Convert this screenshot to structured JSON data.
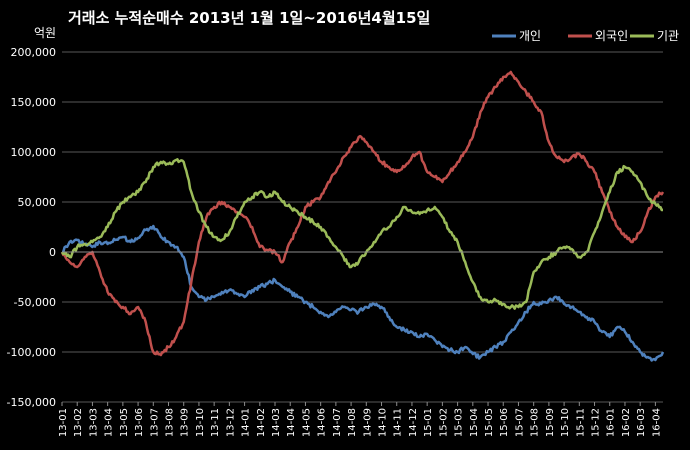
{
  "chart_data": {
    "type": "line",
    "title": "거래소  누적순매수 2013년 1월 1일~2016년4월15일",
    "unit_label": "억원",
    "ylim": [
      -150000,
      200000
    ],
    "y_ticks": [
      {
        "value": 200000,
        "label": "200,000"
      },
      {
        "value": 150000,
        "label": "150,000"
      },
      {
        "value": 100000,
        "label": "100,000"
      },
      {
        "value": 50000,
        "label": "50,000"
      },
      {
        "value": 0,
        "label": "0"
      },
      {
        "value": -50000,
        "label": "-50,000"
      },
      {
        "value": -100000,
        "label": "-100,000"
      },
      {
        "value": -150000,
        "label": "-150,000"
      }
    ],
    "categories": [
      "13-01",
      "13-02",
      "13-03",
      "13-04",
      "13-05",
      "13-06",
      "13-07",
      "13-08",
      "13-09",
      "13-10",
      "13-11",
      "13-12",
      "14-01",
      "14-02",
      "14-03",
      "14-04",
      "14-05",
      "14-06",
      "14-07",
      "14-08",
      "14-09",
      "14-10",
      "14-11",
      "14-12",
      "15-01",
      "15-02",
      "15-03",
      "15-04",
      "15-05",
      "15-06",
      "15-07",
      "15-08",
      "15-09",
      "15-10",
      "15-11",
      "15-12",
      "16-01",
      "16-02",
      "16-03",
      "16-04"
    ],
    "x_end": 39.5,
    "grid": true,
    "legend": "top-right",
    "series": [
      {
        "name": "개인",
        "color": "#4F81BD",
        "points": [
          [
            0,
            0
          ],
          [
            0.5,
            10000
          ],
          [
            1,
            12000
          ],
          [
            1.5,
            8000
          ],
          [
            2,
            5000
          ],
          [
            2.5,
            10000
          ],
          [
            3,
            8000
          ],
          [
            3.5,
            12000
          ],
          [
            4,
            15000
          ],
          [
            4.5,
            10000
          ],
          [
            5,
            14000
          ],
          [
            5.5,
            22000
          ],
          [
            6,
            26000
          ],
          [
            6.5,
            15000
          ],
          [
            7,
            10000
          ],
          [
            7.5,
            5000
          ],
          [
            8,
            -5000
          ],
          [
            8.5,
            -35000
          ],
          [
            9,
            -45000
          ],
          [
            9.5,
            -48000
          ],
          [
            10,
            -45000
          ],
          [
            10.5,
            -40000
          ],
          [
            11,
            -38000
          ],
          [
            11.5,
            -42000
          ],
          [
            12,
            -45000
          ],
          [
            12.5,
            -38000
          ],
          [
            13,
            -35000
          ],
          [
            13.5,
            -32000
          ],
          [
            14,
            -28000
          ],
          [
            14.5,
            -35000
          ],
          [
            15,
            -40000
          ],
          [
            15.5,
            -45000
          ],
          [
            16,
            -50000
          ],
          [
            16.5,
            -55000
          ],
          [
            17,
            -60000
          ],
          [
            17.5,
            -65000
          ],
          [
            18,
            -60000
          ],
          [
            18.5,
            -55000
          ],
          [
            19,
            -58000
          ],
          [
            19.5,
            -60000
          ],
          [
            20,
            -55000
          ],
          [
            20.5,
            -52000
          ],
          [
            21,
            -55000
          ],
          [
            21.5,
            -65000
          ],
          [
            22,
            -75000
          ],
          [
            22.5,
            -78000
          ],
          [
            23,
            -80000
          ],
          [
            23.5,
            -85000
          ],
          [
            24,
            -82000
          ],
          [
            24.5,
            -88000
          ],
          [
            25,
            -95000
          ],
          [
            25.5,
            -98000
          ],
          [
            26,
            -100000
          ],
          [
            26.5,
            -95000
          ],
          [
            27,
            -102000
          ],
          [
            27.5,
            -105000
          ],
          [
            28,
            -100000
          ],
          [
            28.5,
            -95000
          ],
          [
            29,
            -90000
          ],
          [
            29.5,
            -80000
          ],
          [
            30,
            -70000
          ],
          [
            30.5,
            -60000
          ],
          [
            31,
            -50000
          ],
          [
            31.5,
            -52000
          ],
          [
            32,
            -48000
          ],
          [
            32.5,
            -45000
          ],
          [
            33,
            -52000
          ],
          [
            33.5,
            -55000
          ],
          [
            34,
            -60000
          ],
          [
            34.5,
            -65000
          ],
          [
            35,
            -70000
          ],
          [
            35.5,
            -80000
          ],
          [
            36,
            -85000
          ],
          [
            36.5,
            -75000
          ],
          [
            37,
            -80000
          ],
          [
            37.5,
            -90000
          ],
          [
            38,
            -100000
          ],
          [
            38.5,
            -105000
          ],
          [
            39,
            -108000
          ],
          [
            39.5,
            -100000
          ]
        ]
      },
      {
        "name": "외국인",
        "color": "#C0504D",
        "points": [
          [
            0,
            0
          ],
          [
            0.5,
            -10000
          ],
          [
            1,
            -15000
          ],
          [
            1.5,
            -5000
          ],
          [
            2,
            0
          ],
          [
            2.5,
            -20000
          ],
          [
            3,
            -40000
          ],
          [
            3.5,
            -50000
          ],
          [
            4,
            -55000
          ],
          [
            4.5,
            -62000
          ],
          [
            5,
            -55000
          ],
          [
            5.5,
            -70000
          ],
          [
            6,
            -100000
          ],
          [
            6.5,
            -103000
          ],
          [
            7,
            -95000
          ],
          [
            7.5,
            -85000
          ],
          [
            8,
            -70000
          ],
          [
            8.5,
            -30000
          ],
          [
            9,
            10000
          ],
          [
            9.5,
            35000
          ],
          [
            10,
            45000
          ],
          [
            10.5,
            50000
          ],
          [
            11,
            45000
          ],
          [
            11.5,
            40000
          ],
          [
            12,
            35000
          ],
          [
            12.5,
            25000
          ],
          [
            13,
            5000
          ],
          [
            13.5,
            2000
          ],
          [
            14,
            0
          ],
          [
            14.5,
            -10000
          ],
          [
            15,
            10000
          ],
          [
            15.5,
            25000
          ],
          [
            16,
            45000
          ],
          [
            16.5,
            50000
          ],
          [
            17,
            55000
          ],
          [
            17.5,
            70000
          ],
          [
            18,
            80000
          ],
          [
            18.5,
            95000
          ],
          [
            19,
            105000
          ],
          [
            19.5,
            115000
          ],
          [
            20,
            110000
          ],
          [
            20.5,
            100000
          ],
          [
            21,
            90000
          ],
          [
            21.5,
            85000
          ],
          [
            22,
            80000
          ],
          [
            22.5,
            85000
          ],
          [
            23,
            95000
          ],
          [
            23.5,
            100000
          ],
          [
            24,
            80000
          ],
          [
            24.5,
            75000
          ],
          [
            25,
            70000
          ],
          [
            25.5,
            80000
          ],
          [
            26,
            90000
          ],
          [
            26.5,
            100000
          ],
          [
            27,
            115000
          ],
          [
            27.5,
            140000
          ],
          [
            28,
            155000
          ],
          [
            28.5,
            165000
          ],
          [
            29,
            175000
          ],
          [
            29.5,
            180000
          ],
          [
            30,
            170000
          ],
          [
            30.5,
            160000
          ],
          [
            31,
            150000
          ],
          [
            31.5,
            140000
          ],
          [
            32,
            110000
          ],
          [
            32.5,
            95000
          ],
          [
            33,
            90000
          ],
          [
            33.5,
            95000
          ],
          [
            34,
            98000
          ],
          [
            34.5,
            90000
          ],
          [
            35,
            80000
          ],
          [
            35.5,
            60000
          ],
          [
            36,
            40000
          ],
          [
            36.5,
            25000
          ],
          [
            37,
            15000
          ],
          [
            37.5,
            10000
          ],
          [
            38,
            20000
          ],
          [
            38.5,
            40000
          ],
          [
            39,
            55000
          ],
          [
            39.5,
            60000
          ]
        ]
      },
      {
        "name": "기관",
        "color": "#9BBB59",
        "points": [
          [
            0,
            0
          ],
          [
            0.5,
            -5000
          ],
          [
            1,
            5000
          ],
          [
            1.5,
            8000
          ],
          [
            2,
            10000
          ],
          [
            2.5,
            15000
          ],
          [
            3,
            25000
          ],
          [
            3.5,
            40000
          ],
          [
            4,
            50000
          ],
          [
            4.5,
            55000
          ],
          [
            5,
            60000
          ],
          [
            5.5,
            70000
          ],
          [
            6,
            85000
          ],
          [
            6.5,
            90000
          ],
          [
            7,
            88000
          ],
          [
            7.5,
            92000
          ],
          [
            8,
            90000
          ],
          [
            8.5,
            60000
          ],
          [
            9,
            40000
          ],
          [
            9.5,
            25000
          ],
          [
            10,
            15000
          ],
          [
            10.5,
            12000
          ],
          [
            11,
            20000
          ],
          [
            11.5,
            35000
          ],
          [
            12,
            50000
          ],
          [
            12.5,
            55000
          ],
          [
            13,
            60000
          ],
          [
            13.5,
            55000
          ],
          [
            14,
            60000
          ],
          [
            14.5,
            50000
          ],
          [
            15,
            45000
          ],
          [
            15.5,
            40000
          ],
          [
            16,
            35000
          ],
          [
            16.5,
            30000
          ],
          [
            17,
            25000
          ],
          [
            17.5,
            15000
          ],
          [
            18,
            5000
          ],
          [
            18.5,
            -5000
          ],
          [
            19,
            -15000
          ],
          [
            19.5,
            -10000
          ],
          [
            20,
            0
          ],
          [
            20.5,
            10000
          ],
          [
            21,
            20000
          ],
          [
            21.5,
            25000
          ],
          [
            22,
            35000
          ],
          [
            22.5,
            45000
          ],
          [
            23,
            40000
          ],
          [
            23.5,
            38000
          ],
          [
            24,
            42000
          ],
          [
            24.5,
            45000
          ],
          [
            25,
            35000
          ],
          [
            25.5,
            20000
          ],
          [
            26,
            10000
          ],
          [
            26.5,
            -10000
          ],
          [
            27,
            -30000
          ],
          [
            27.5,
            -45000
          ],
          [
            28,
            -50000
          ],
          [
            28.5,
            -48000
          ],
          [
            29,
            -52000
          ],
          [
            29.5,
            -55000
          ],
          [
            30,
            -55000
          ],
          [
            30.5,
            -50000
          ],
          [
            31,
            -20000
          ],
          [
            31.5,
            -10000
          ],
          [
            32,
            -5000
          ],
          [
            32.5,
            0
          ],
          [
            33,
            5000
          ],
          [
            33.5,
            3000
          ],
          [
            34,
            -5000
          ],
          [
            34.5,
            0
          ],
          [
            35,
            20000
          ],
          [
            35.5,
            40000
          ],
          [
            36,
            60000
          ],
          [
            36.5,
            80000
          ],
          [
            37,
            85000
          ],
          [
            37.5,
            80000
          ],
          [
            38,
            70000
          ],
          [
            38.5,
            55000
          ],
          [
            39,
            48000
          ],
          [
            39.5,
            42000
          ]
        ]
      }
    ]
  }
}
